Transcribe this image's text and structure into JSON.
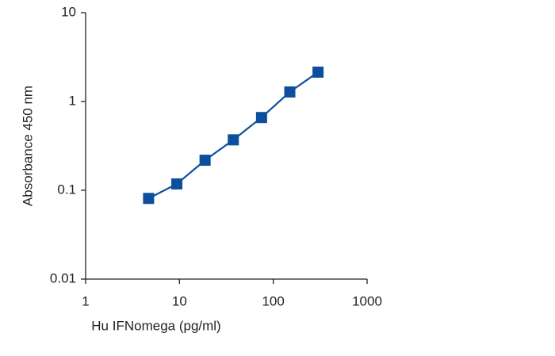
{
  "chart_data": {
    "type": "line",
    "x_label": "Hu IFNomega (pg/ml)",
    "y_label": "Absorbance 450 nm",
    "x": [
      4.69,
      9.38,
      18.75,
      37.5,
      75,
      150,
      300
    ],
    "series": [
      {
        "color": "#0d4f9c",
        "values": [
          0.081,
          0.118,
          0.218,
          0.37,
          0.66,
          1.28,
          2.14
        ]
      }
    ],
    "xlim": [
      1,
      1000
    ],
    "ylim": [
      0.01,
      10
    ],
    "xticks": [
      1,
      10,
      100,
      1000
    ],
    "yticks": [
      0.01,
      0.1,
      1,
      10
    ],
    "xlog": true,
    "ylog": true,
    "markers": "square"
  }
}
